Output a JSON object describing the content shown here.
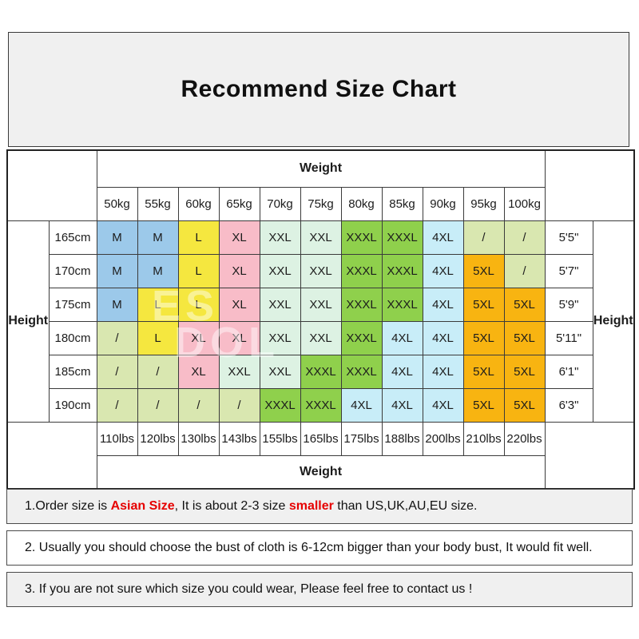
{
  "title": "Recommend Size Chart",
  "table": {
    "weight_header": "Weight",
    "weight_footer": "Weight",
    "height_label_left": "Height",
    "height_label_right": "Height",
    "weights_kg": [
      "50kg",
      "55kg",
      "60kg",
      "65kg",
      "70kg",
      "75kg",
      "80kg",
      "85kg",
      "90kg",
      "95kg",
      "100kg"
    ],
    "weights_lbs": [
      "110lbs",
      "120lbs",
      "130lbs",
      "143lbs",
      "155lbs",
      "165lbs",
      "175lbs",
      "188lbs",
      "200lbs",
      "210lbs",
      "220lbs"
    ],
    "rows": [
      {
        "height_cm": "165cm",
        "height_ft": "5'5\"",
        "cells": [
          [
            "M",
            "blue"
          ],
          [
            "M",
            "blue"
          ],
          [
            "L",
            "yellow"
          ],
          [
            "XL",
            "pink"
          ],
          [
            "XXL",
            "mint"
          ],
          [
            "XXL",
            "mint"
          ],
          [
            "XXXL",
            "green"
          ],
          [
            "XXXL",
            "green"
          ],
          [
            "4XL",
            "cyan"
          ],
          [
            "/",
            "paleyg"
          ],
          [
            "/",
            "paleyg"
          ]
        ]
      },
      {
        "height_cm": "170cm",
        "height_ft": "5'7\"",
        "cells": [
          [
            "M",
            "blue"
          ],
          [
            "M",
            "blue"
          ],
          [
            "L",
            "yellow"
          ],
          [
            "XL",
            "pink"
          ],
          [
            "XXL",
            "mint"
          ],
          [
            "XXL",
            "mint"
          ],
          [
            "XXXL",
            "green"
          ],
          [
            "XXXL",
            "green"
          ],
          [
            "4XL",
            "cyan"
          ],
          [
            "5XL",
            "orange"
          ],
          [
            "/",
            "paleyg"
          ]
        ]
      },
      {
        "height_cm": "175cm",
        "height_ft": "5'9\"",
        "cells": [
          [
            "M",
            "blue"
          ],
          [
            "L",
            "yellow"
          ],
          [
            "L",
            "yellow"
          ],
          [
            "XL",
            "pink"
          ],
          [
            "XXL",
            "mint"
          ],
          [
            "XXL",
            "mint"
          ],
          [
            "XXXL",
            "green"
          ],
          [
            "XXXL",
            "green"
          ],
          [
            "4XL",
            "cyan"
          ],
          [
            "5XL",
            "orange"
          ],
          [
            "5XL",
            "orange"
          ]
        ]
      },
      {
        "height_cm": "180cm",
        "height_ft": "5'11\"",
        "cells": [
          [
            "/",
            "paleyg"
          ],
          [
            "L",
            "yellow"
          ],
          [
            "XL",
            "pink"
          ],
          [
            "XL",
            "pink"
          ],
          [
            "XXL",
            "mint"
          ],
          [
            "XXL",
            "mint"
          ],
          [
            "XXXL",
            "green"
          ],
          [
            "4XL",
            "cyan"
          ],
          [
            "4XL",
            "cyan"
          ],
          [
            "5XL",
            "orange"
          ],
          [
            "5XL",
            "orange"
          ]
        ]
      },
      {
        "height_cm": "185cm",
        "height_ft": "6'1\"",
        "cells": [
          [
            "/",
            "paleyg"
          ],
          [
            "/",
            "paleyg"
          ],
          [
            "XL",
            "pink"
          ],
          [
            "XXL",
            "mint"
          ],
          [
            "XXL",
            "mint"
          ],
          [
            "XXXL",
            "green"
          ],
          [
            "XXXL",
            "green"
          ],
          [
            "4XL",
            "cyan"
          ],
          [
            "4XL",
            "cyan"
          ],
          [
            "5XL",
            "orange"
          ],
          [
            "5XL",
            "orange"
          ]
        ]
      },
      {
        "height_cm": "190cm",
        "height_ft": "6'3\"",
        "cells": [
          [
            "/",
            "paleyg"
          ],
          [
            "/",
            "paleyg"
          ],
          [
            "/",
            "paleyg"
          ],
          [
            "/",
            "paleyg"
          ],
          [
            "XXXL",
            "green"
          ],
          [
            "XXXL",
            "green"
          ],
          [
            "4XL",
            "cyan"
          ],
          [
            "4XL",
            "cyan"
          ],
          [
            "4XL",
            "cyan"
          ],
          [
            "5XL",
            "orange"
          ],
          [
            "5XL",
            "orange"
          ]
        ]
      }
    ]
  },
  "palette": {
    "blue": "#9CC9EA",
    "yellow": "#F5E73F",
    "pink": "#F8BCC8",
    "mint": "#DDF2E3",
    "green": "#8FD04C",
    "cyan": "#C8EDF8",
    "orange": "#F8B411",
    "paleyg": "#D9E7B0"
  },
  "watermark": {
    "line1": "ES",
    "line2": "DOL"
  },
  "notes": [
    {
      "bg": "gray",
      "parts": [
        {
          "text": "1.Order size is ",
          "style": "normal"
        },
        {
          "text": "Asian Size",
          "style": "red"
        },
        {
          "text": ", It is about 2-3 size ",
          "style": "normal"
        },
        {
          "text": "smaller",
          "style": "red"
        },
        {
          "text": " than US,UK,AU,EU size.",
          "style": "normal"
        }
      ]
    },
    {
      "bg": "white",
      "parts": [
        {
          "text": "2. Usually you should choose the bust of cloth is 6-12cm bigger than your body bust, It would fit well.",
          "style": "normal"
        }
      ]
    },
    {
      "bg": "gray",
      "parts": [
        {
          "text": "3. If you are not sure which size you could wear, Please feel free to contact us !",
          "style": "normal"
        }
      ]
    }
  ]
}
